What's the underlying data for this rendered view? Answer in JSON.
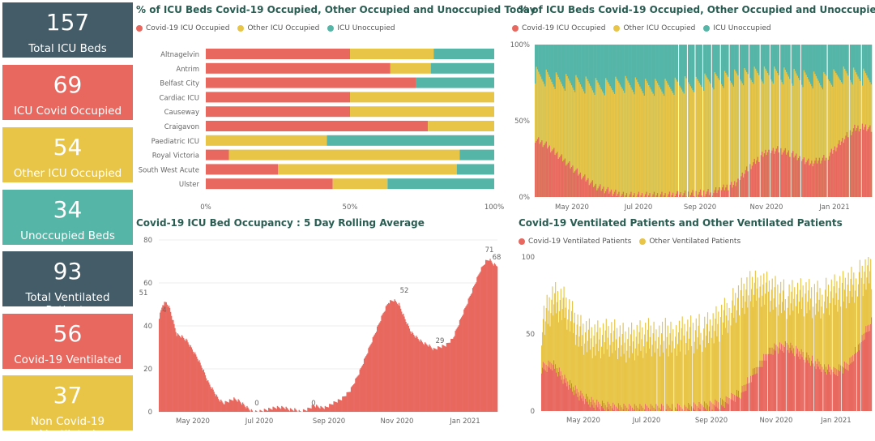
{
  "colors": {
    "covid": "#E8685F",
    "other": "#E8C547",
    "unocc": "#55B6A8",
    "dark": "#445C68"
  },
  "cards": [
    {
      "value": "157",
      "label": "Total ICU Beds",
      "color": "#445C68"
    },
    {
      "value": "69",
      "label": "ICU Covid Occupied",
      "color": "#E8685F"
    },
    {
      "value": "54",
      "label": "Other ICU Occupied",
      "color": "#E8C547"
    },
    {
      "value": "34",
      "label": "Unoccupied Beds",
      "color": "#55B6A8"
    },
    {
      "value": "93",
      "label": "Total Ventilated Patients",
      "color": "#445C68"
    },
    {
      "value": "56",
      "label": "Covid-19 Ventilated",
      "color": "#E8685F"
    },
    {
      "value": "37",
      "label": "Non Covid-19 Ventilated",
      "color": "#E8C547"
    }
  ],
  "icu_legend": [
    "Covid-19 ICU Occupied",
    "Other ICU Occupied",
    "ICU Unoccupied"
  ],
  "vent_legend": [
    "Covid-19 Ventilated Patients",
    "Other Ventilated Patients"
  ],
  "date_ticks": [
    "May 2020",
    "Jul 2020",
    "Sep 2020",
    "Nov 2020",
    "Jan 2021"
  ],
  "chart_data": [
    {
      "type": "bar",
      "title": "% of ICU Beds Covid-19 Occupied, Other Occupied and Unoccupied Today",
      "orientation": "horizontal-stacked-100",
      "categories": [
        "Altnagelvin",
        "Antrim",
        "Belfast City",
        "Cardiac ICU",
        "Causeway",
        "Craigavon",
        "Paediatric ICU",
        "Royal Victoria",
        "South West Acute",
        "Ulster"
      ],
      "series": [
        {
          "name": "Covid-19 ICU Occupied",
          "values": [
            50,
            64,
            73,
            50,
            50,
            77,
            0,
            8,
            25,
            44
          ]
        },
        {
          "name": "Other ICU Occupied",
          "values": [
            29,
            14,
            0,
            50,
            50,
            23,
            42,
            80,
            62,
            19
          ]
        },
        {
          "name": "ICU Unoccupied",
          "values": [
            21,
            22,
            27,
            0,
            0,
            0,
            58,
            12,
            13,
            37
          ]
        }
      ],
      "x_ticks": [
        "0%",
        "50%",
        "100%"
      ]
    },
    {
      "type": "area",
      "title": "% of ICU Beds Covid-19 Occupied, Other Occupied and Unoccupied",
      "stacked_percent": true,
      "y_ticks": [
        "0%",
        "50%",
        "100%"
      ],
      "x_ticks": [
        "May 2020",
        "Jul 2020",
        "Sep 2020",
        "Nov 2020",
        "Jan 2021"
      ],
      "series": [
        {
          "name": "Covid-19 ICU Occupied",
          "points": [
            [
              0,
              38
            ],
            [
              10,
              34
            ],
            [
              25,
              25
            ],
            [
              40,
              15
            ],
            [
              55,
              7
            ],
            [
              70,
              3
            ],
            [
              80,
              1
            ],
            [
              90,
              1
            ],
            [
              120,
              1
            ],
            [
              140,
              2
            ],
            [
              160,
              3
            ],
            [
              180,
              8
            ],
            [
              195,
              20
            ],
            [
              210,
              30
            ],
            [
              220,
              31
            ],
            [
              230,
              29
            ],
            [
              240,
              26
            ],
            [
              250,
              22
            ],
            [
              265,
              26
            ],
            [
              280,
              38
            ],
            [
              290,
              45
            ],
            [
              300,
              46
            ],
            [
              306,
              44
            ]
          ]
        },
        {
          "name": "Other ICU Occupied",
          "points": [
            [
              0,
              80
            ],
            [
              20,
              76
            ],
            [
              40,
              74
            ],
            [
              60,
              72
            ],
            [
              80,
              74
            ],
            [
              100,
              72
            ],
            [
              120,
              72
            ],
            [
              140,
              74
            ],
            [
              160,
              76
            ],
            [
              180,
              78
            ],
            [
              200,
              80
            ],
            [
              220,
              80
            ],
            [
              240,
              78
            ],
            [
              260,
              76
            ],
            [
              280,
              80
            ],
            [
              306,
              78
            ]
          ]
        }
      ]
    },
    {
      "type": "bar",
      "title": "Covid-19 ICU Bed Occupancy : 5 Day Rolling Average",
      "y_ticks": [
        "0",
        "20",
        "40",
        "60",
        "80"
      ],
      "ylim": [
        0,
        80
      ],
      "x_ticks": [
        "May 2020",
        "Jul 2020",
        "Sep 2020",
        "Nov 2020",
        "Jan 2021"
      ],
      "points": [
        [
          0,
          44
        ],
        [
          4,
          50
        ],
        [
          8,
          51
        ],
        [
          12,
          48
        ],
        [
          16,
          42
        ],
        [
          20,
          36
        ],
        [
          26,
          35
        ],
        [
          32,
          33
        ],
        [
          38,
          29
        ],
        [
          44,
          25
        ],
        [
          50,
          20
        ],
        [
          56,
          14
        ],
        [
          62,
          10
        ],
        [
          68,
          6
        ],
        [
          74,
          4
        ],
        [
          80,
          5
        ],
        [
          86,
          6
        ],
        [
          92,
          5
        ],
        [
          98,
          3
        ],
        [
          104,
          1
        ],
        [
          108,
          0
        ],
        [
          114,
          0
        ],
        [
          124,
          1
        ],
        [
          134,
          2
        ],
        [
          144,
          2
        ],
        [
          150,
          1
        ],
        [
          156,
          1
        ],
        [
          162,
          0
        ],
        [
          170,
          1
        ],
        [
          178,
          3
        ],
        [
          186,
          2
        ],
        [
          192,
          2
        ],
        [
          200,
          4
        ],
        [
          210,
          6
        ],
        [
          220,
          10
        ],
        [
          230,
          18
        ],
        [
          240,
          28
        ],
        [
          250,
          38
        ],
        [
          258,
          46
        ],
        [
          264,
          51
        ],
        [
          270,
          52
        ],
        [
          276,
          50
        ],
        [
          282,
          44
        ],
        [
          290,
          37
        ],
        [
          298,
          34
        ],
        [
          304,
          32
        ],
        [
          310,
          31
        ],
        [
          316,
          29
        ],
        [
          322,
          30
        ],
        [
          330,
          31
        ],
        [
          338,
          34
        ],
        [
          346,
          42
        ],
        [
          354,
          50
        ],
        [
          362,
          58
        ],
        [
          370,
          66
        ],
        [
          376,
          70
        ],
        [
          380,
          71
        ],
        [
          384,
          69
        ],
        [
          388,
          68
        ]
      ],
      "data_labels": [
        "51",
        "0",
        "0",
        "52",
        "29",
        "71",
        "68",
        "4"
      ]
    },
    {
      "type": "bar",
      "title": "Covid-19 Ventilated Patients and Other Ventilated Patients",
      "stacked": true,
      "y_ticks": [
        "0",
        "50",
        "100"
      ],
      "ylim": [
        0,
        100
      ],
      "x_ticks": [
        "May 2020",
        "Jul 2020",
        "Sep 2020",
        "Nov 2020",
        "Jan 2021"
      ],
      "series": [
        {
          "name": "Covid-19 Ventilated Patients",
          "points": [
            [
              0,
              28
            ],
            [
              15,
              30
            ],
            [
              30,
              20
            ],
            [
              50,
              10
            ],
            [
              70,
              4
            ],
            [
              90,
              2
            ],
            [
              110,
              1
            ],
            [
              140,
              1
            ],
            [
              170,
              1
            ],
            [
              200,
              2
            ],
            [
              220,
              3
            ],
            [
              240,
              6
            ],
            [
              260,
              12
            ],
            [
              280,
              28
            ],
            [
              300,
              40
            ],
            [
              320,
              42
            ],
            [
              340,
              36
            ],
            [
              360,
              30
            ],
            [
              380,
              25
            ],
            [
              400,
              30
            ],
            [
              420,
              50
            ],
            [
              430,
              58
            ]
          ]
        },
        {
          "name": "Other Ventilated Patients",
          "points": [
            [
              0,
              55
            ],
            [
              15,
              72
            ],
            [
              30,
              68
            ],
            [
              50,
              50
            ],
            [
              70,
              46
            ],
            [
              90,
              48
            ],
            [
              110,
              44
            ],
            [
              140,
              48
            ],
            [
              170,
              48
            ],
            [
              200,
              50
            ],
            [
              220,
              52
            ],
            [
              240,
              62
            ],
            [
              260,
              74
            ],
            [
              280,
              82
            ],
            [
              300,
              76
            ],
            [
              320,
              72
            ],
            [
              340,
              74
            ],
            [
              360,
              72
            ],
            [
              380,
              76
            ],
            [
              400,
              80
            ],
            [
              420,
              88
            ],
            [
              430,
              92
            ]
          ]
        }
      ]
    }
  ]
}
